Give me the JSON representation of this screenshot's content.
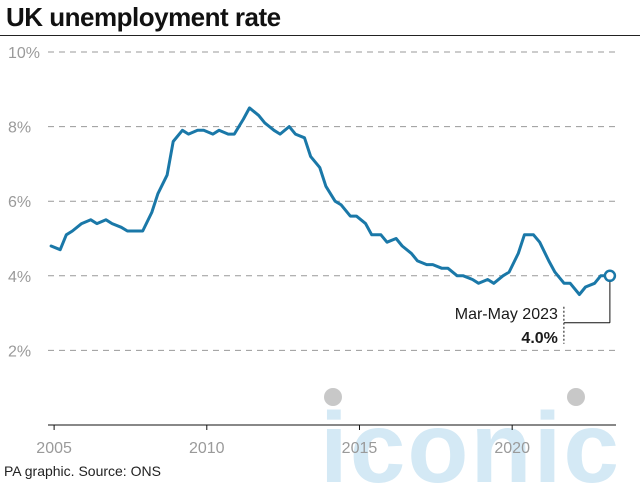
{
  "title": "UK unemployment rate",
  "credit": "PA graphic. Source: ONS",
  "watermark": "iconic",
  "colors": {
    "line": "#1a78a8",
    "grid": "#999999",
    "watermark": "#d4e9f5",
    "watermark_dot": "#c8c8c8"
  },
  "chart_data": {
    "type": "line",
    "title": "UK unemployment rate",
    "xlabel": "",
    "ylabel": "",
    "xlim": [
      2004.8,
      2023.4
    ],
    "ylim": [
      0,
      10
    ],
    "y_ticks": [
      2,
      4,
      6,
      8,
      10
    ],
    "y_tick_labels": [
      "2%",
      "4%",
      "6%",
      "8%",
      "10%"
    ],
    "x_ticks": [
      2005,
      2010,
      2015,
      2020
    ],
    "x_tick_labels": [
      "2005",
      "2010",
      "2015",
      "2020"
    ],
    "grid": "horizontal dashed",
    "series": [
      {
        "x": [
          2004.9,
          2005.2,
          2005.4,
          2005.6,
          2005.9,
          2006.2,
          2006.4,
          2006.7,
          2006.9,
          2007.2,
          2007.4,
          2007.7,
          2007.9,
          2008.2,
          2008.4,
          2008.7,
          2008.9,
          2009.2,
          2009.4,
          2009.7,
          2009.9,
          2010.2,
          2010.4,
          2010.7,
          2010.9,
          2011.2,
          2011.4,
          2011.7,
          2011.9,
          2012.2,
          2012.4,
          2012.7,
          2012.9,
          2013.2,
          2013.4,
          2013.7,
          2013.9,
          2014.2,
          2014.4,
          2014.7,
          2014.9,
          2015.2,
          2015.4,
          2015.7,
          2015.9,
          2016.2,
          2016.4,
          2016.7,
          2016.9,
          2017.2,
          2017.4,
          2017.7,
          2017.9,
          2018.2,
          2018.4,
          2018.7,
          2018.9,
          2019.2,
          2019.4,
          2019.7,
          2019.9,
          2020.2,
          2020.4,
          2020.7,
          2020.9,
          2021.2,
          2021.4,
          2021.7,
          2021.9,
          2022.2,
          2022.4,
          2022.7,
          2022.9,
          2023.2
        ],
        "values": [
          4.8,
          4.7,
          5.1,
          5.2,
          5.4,
          5.5,
          5.4,
          5.5,
          5.4,
          5.3,
          5.2,
          5.2,
          5.2,
          5.7,
          6.2,
          6.7,
          7.6,
          7.9,
          7.8,
          7.9,
          7.9,
          7.8,
          7.9,
          7.8,
          7.8,
          8.2,
          8.5,
          8.3,
          8.1,
          7.9,
          7.8,
          8.0,
          7.8,
          7.7,
          7.2,
          6.9,
          6.4,
          6.0,
          5.9,
          5.6,
          5.6,
          5.4,
          5.1,
          5.1,
          4.9,
          5.0,
          4.8,
          4.6,
          4.4,
          4.3,
          4.3,
          4.2,
          4.2,
          4.0,
          4.0,
          3.9,
          3.8,
          3.9,
          3.8,
          4.0,
          4.1,
          4.6,
          5.1,
          5.1,
          4.9,
          4.4,
          4.1,
          3.8,
          3.8,
          3.5,
          3.7,
          3.8,
          4.0,
          4.0
        ]
      }
    ],
    "annotation": {
      "label": "Mar-May 2023",
      "value": "4.0%",
      "x": 2023.2,
      "y": 4.0
    }
  }
}
